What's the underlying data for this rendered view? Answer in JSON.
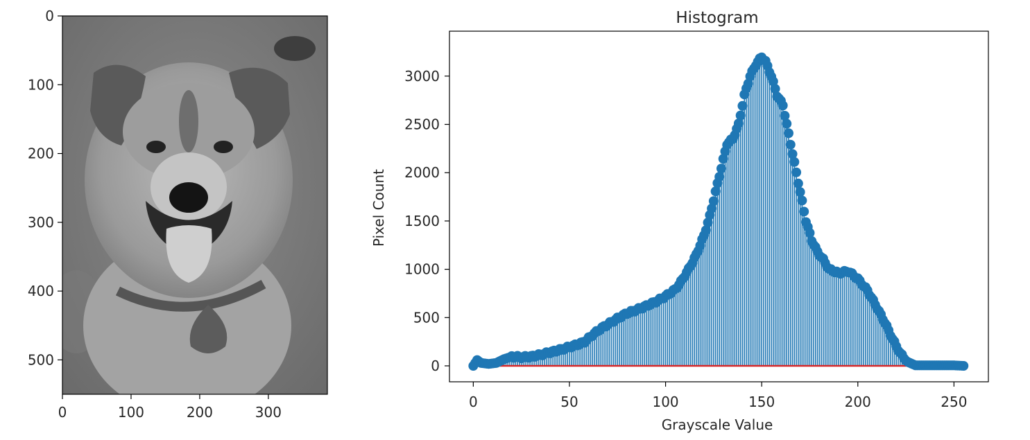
{
  "image_panel": {
    "content": "grayscale photograph of a smiling dog wearing a collar tag",
    "x_ticks": [
      "0",
      "100",
      "200",
      "300"
    ],
    "y_ticks": [
      "0",
      "100",
      "200",
      "300",
      "400",
      "500"
    ],
    "xlim": [
      0,
      386
    ],
    "ylim": [
      550,
      0
    ]
  },
  "chart_data": {
    "type": "stem",
    "title": "Histogram",
    "xlabel": "Grayscale Value",
    "ylabel": "Pixel Count",
    "xlim": [
      0,
      255
    ],
    "ylim": [
      0,
      3300
    ],
    "x_ticks": [
      "0",
      "50",
      "100",
      "150",
      "200",
      "250"
    ],
    "y_ticks": [
      "0",
      "500",
      "1000",
      "1500",
      "2000",
      "2500",
      "3000"
    ],
    "colors": {
      "stem": "#1f77b4",
      "baseline": "#d62728"
    },
    "keypoints": [
      [
        0,
        0
      ],
      [
        2,
        60
      ],
      [
        4,
        30
      ],
      [
        8,
        20
      ],
      [
        12,
        30
      ],
      [
        16,
        70
      ],
      [
        20,
        95
      ],
      [
        25,
        90
      ],
      [
        30,
        95
      ],
      [
        35,
        115
      ],
      [
        40,
        140
      ],
      [
        45,
        165
      ],
      [
        50,
        195
      ],
      [
        55,
        225
      ],
      [
        58,
        250
      ],
      [
        62,
        320
      ],
      [
        66,
        380
      ],
      [
        70,
        430
      ],
      [
        75,
        490
      ],
      [
        80,
        545
      ],
      [
        85,
        580
      ],
      [
        90,
        620
      ],
      [
        95,
        665
      ],
      [
        100,
        720
      ],
      [
        105,
        790
      ],
      [
        108,
        870
      ],
      [
        112,
        1000
      ],
      [
        116,
        1150
      ],
      [
        120,
        1350
      ],
      [
        123,
        1550
      ],
      [
        126,
        1800
      ],
      [
        129,
        2050
      ],
      [
        132,
        2300
      ],
      [
        135,
        2350
      ],
      [
        138,
        2500
      ],
      [
        141,
        2800
      ],
      [
        144,
        3000
      ],
      [
        147,
        3120
      ],
      [
        150,
        3200
      ],
      [
        152,
        3150
      ],
      [
        155,
        3000
      ],
      [
        158,
        2800
      ],
      [
        161,
        2700
      ],
      [
        164,
        2400
      ],
      [
        167,
        2100
      ],
      [
        170,
        1800
      ],
      [
        173,
        1500
      ],
      [
        176,
        1300
      ],
      [
        179,
        1180
      ],
      [
        182,
        1100
      ],
      [
        185,
        1000
      ],
      [
        190,
        960
      ],
      [
        195,
        980
      ],
      [
        200,
        900
      ],
      [
        205,
        780
      ],
      [
        210,
        600
      ],
      [
        214,
        450
      ],
      [
        218,
        280
      ],
      [
        222,
        130
      ],
      [
        226,
        40
      ],
      [
        230,
        5
      ],
      [
        240,
        5
      ],
      [
        250,
        5
      ],
      [
        255,
        0
      ]
    ]
  }
}
